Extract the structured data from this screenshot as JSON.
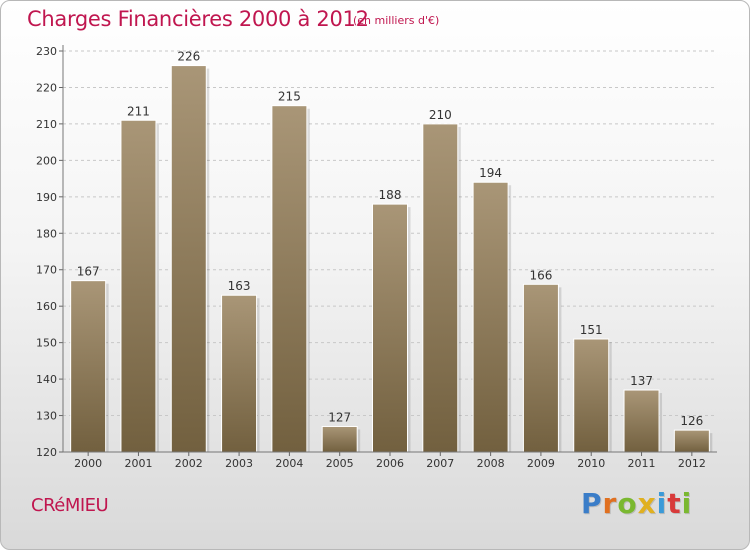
{
  "title": "Charges Financières 2000 à 2012",
  "unit_note": "(en milliers d'€)",
  "commune": "CRéMIEU",
  "logo": {
    "letters": [
      "P",
      "r",
      "o",
      "x",
      "i",
      "t",
      "i"
    ],
    "colors": [
      "#3a7dc8",
      "#e07020",
      "#7ab830",
      "#e0b020",
      "#3a9ad8",
      "#d83a3a",
      "#7ab830"
    ]
  },
  "chart_data": {
    "type": "bar",
    "categories": [
      "2000",
      "2001",
      "2002",
      "2003",
      "2004",
      "2005",
      "2006",
      "2007",
      "2008",
      "2009",
      "2010",
      "2011",
      "2012"
    ],
    "values": [
      167,
      211,
      226,
      163,
      215,
      127,
      188,
      210,
      194,
      166,
      151,
      137,
      126
    ],
    "ylim": [
      120,
      230
    ],
    "yticks": [
      120,
      130,
      140,
      150,
      160,
      170,
      180,
      190,
      200,
      210,
      220,
      230
    ],
    "grid": true,
    "bar_color": "#8d7b5e"
  }
}
